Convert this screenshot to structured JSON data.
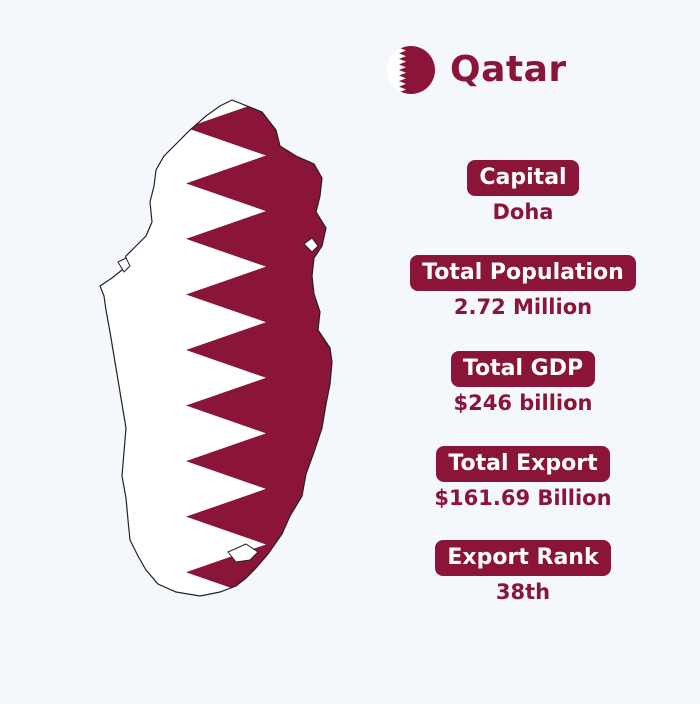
{
  "country": {
    "name": "Qatar"
  },
  "colors": {
    "maroon": "#8a1538",
    "white": "#ffffff",
    "background": "#f4f7fb",
    "outline": "#222222"
  },
  "icons": {
    "flag": "qatar-flag-circle-icon",
    "map": "qatar-map-flag-fill"
  },
  "stats": [
    {
      "label": "Capital",
      "value": "Doha"
    },
    {
      "label": "Total Population",
      "value": "2.72 Million"
    },
    {
      "label": "Total GDP",
      "value": "$246 billion"
    },
    {
      "label": "Total Export",
      "value": "$161.69 Billion"
    },
    {
      "label": "Export Rank",
      "value": "38th"
    }
  ]
}
